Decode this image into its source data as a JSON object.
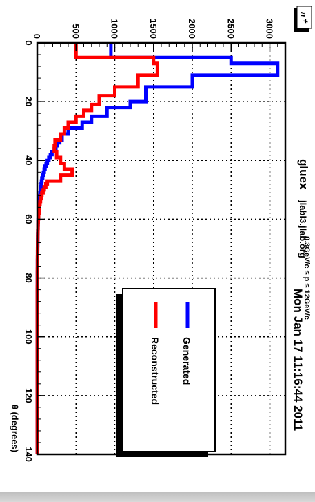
{
  "chart_data": {
    "type": "line",
    "title": "",
    "xlabel": "θ (degrees)",
    "ylabel": "",
    "xlim": [
      0,
      140
    ],
    "ylim": [
      0,
      3200
    ],
    "x_ticks": [
      "0",
      "20",
      "40",
      "60",
      "80",
      "100",
      "120",
      "140"
    ],
    "y_ticks": [
      "0",
      "500",
      "1000",
      "1500",
      "2000",
      "2500",
      "3000"
    ],
    "grid": true,
    "legend_position": "bottom-right",
    "bin_width": 1,
    "series": [
      {
        "name": "Generated",
        "color": "#0000ff",
        "values": [
          950,
          950,
          950,
          950,
          950,
          2500,
          2500,
          3100,
          3100,
          3100,
          3100,
          2000,
          2000,
          2000,
          2000,
          1400,
          1400,
          1400,
          1400,
          1400,
          1200,
          1200,
          900,
          900,
          900,
          700,
          700,
          580,
          580,
          400,
          400,
          320,
          320,
          290,
          260,
          240,
          220,
          190,
          170,
          150,
          130,
          115,
          100,
          90,
          80,
          70,
          60,
          55,
          50,
          45,
          40,
          36,
          32,
          28,
          25,
          22,
          20,
          18,
          16,
          14,
          12,
          11,
          10,
          9,
          8,
          7,
          7,
          6,
          6,
          5,
          5,
          4,
          4,
          4,
          3,
          3,
          3,
          3,
          2,
          2,
          2,
          2,
          2,
          2,
          1,
          1,
          1,
          1,
          1,
          1,
          1,
          1,
          1,
          1,
          1,
          1,
          1,
          1,
          1,
          1,
          1,
          1,
          1,
          1,
          1,
          1,
          1,
          1,
          1,
          1,
          1,
          1,
          1,
          1,
          1,
          1,
          1,
          1,
          1,
          1,
          1,
          1,
          1,
          1,
          1,
          1,
          1,
          1,
          1,
          1,
          1,
          1,
          1,
          1,
          1,
          1,
          1,
          1,
          1,
          1
        ]
      },
      {
        "name": "Reconstructed",
        "color": "#ff0000",
        "values": [
          500,
          500,
          500,
          500,
          500,
          1500,
          1500,
          1550,
          1550,
          1550,
          1550,
          1300,
          1300,
          1300,
          1300,
          1000,
          1000,
          1000,
          800,
          800,
          800,
          700,
          700,
          600,
          600,
          500,
          500,
          400,
          400,
          350,
          350,
          300,
          300,
          230,
          230,
          220,
          220,
          250,
          250,
          300,
          300,
          350,
          350,
          450,
          450,
          300,
          300,
          130,
          110,
          90,
          75,
          60,
          50,
          42,
          35,
          30,
          25,
          22,
          18,
          15,
          13,
          11,
          10,
          9,
          8,
          7,
          6,
          6,
          5,
          5,
          4,
          4,
          4,
          3,
          3,
          3,
          3,
          2,
          2,
          2,
          2,
          2,
          2,
          1,
          1,
          1,
          1,
          1,
          1,
          1,
          1,
          1,
          1,
          1,
          1,
          1,
          1,
          1,
          1,
          1,
          1,
          1,
          1,
          1,
          1,
          1,
          1,
          1,
          1,
          1,
          1,
          1,
          1,
          1,
          1,
          1,
          1,
          1,
          1,
          1,
          1,
          1,
          1,
          1,
          1,
          1,
          1,
          1,
          1,
          1,
          1,
          1,
          1,
          1,
          1,
          1,
          1,
          1,
          1,
          1
        ]
      }
    ],
    "annotations": {
      "particle_label": "π⁺",
      "date_stamp": "Mon Jan 17 11:16:44 2011",
      "momentum_range": "0.3GeV/c ≤ p ≤ 12GeV/c",
      "experiment": "gluex",
      "host": "jlabl3.jlab.org"
    }
  }
}
